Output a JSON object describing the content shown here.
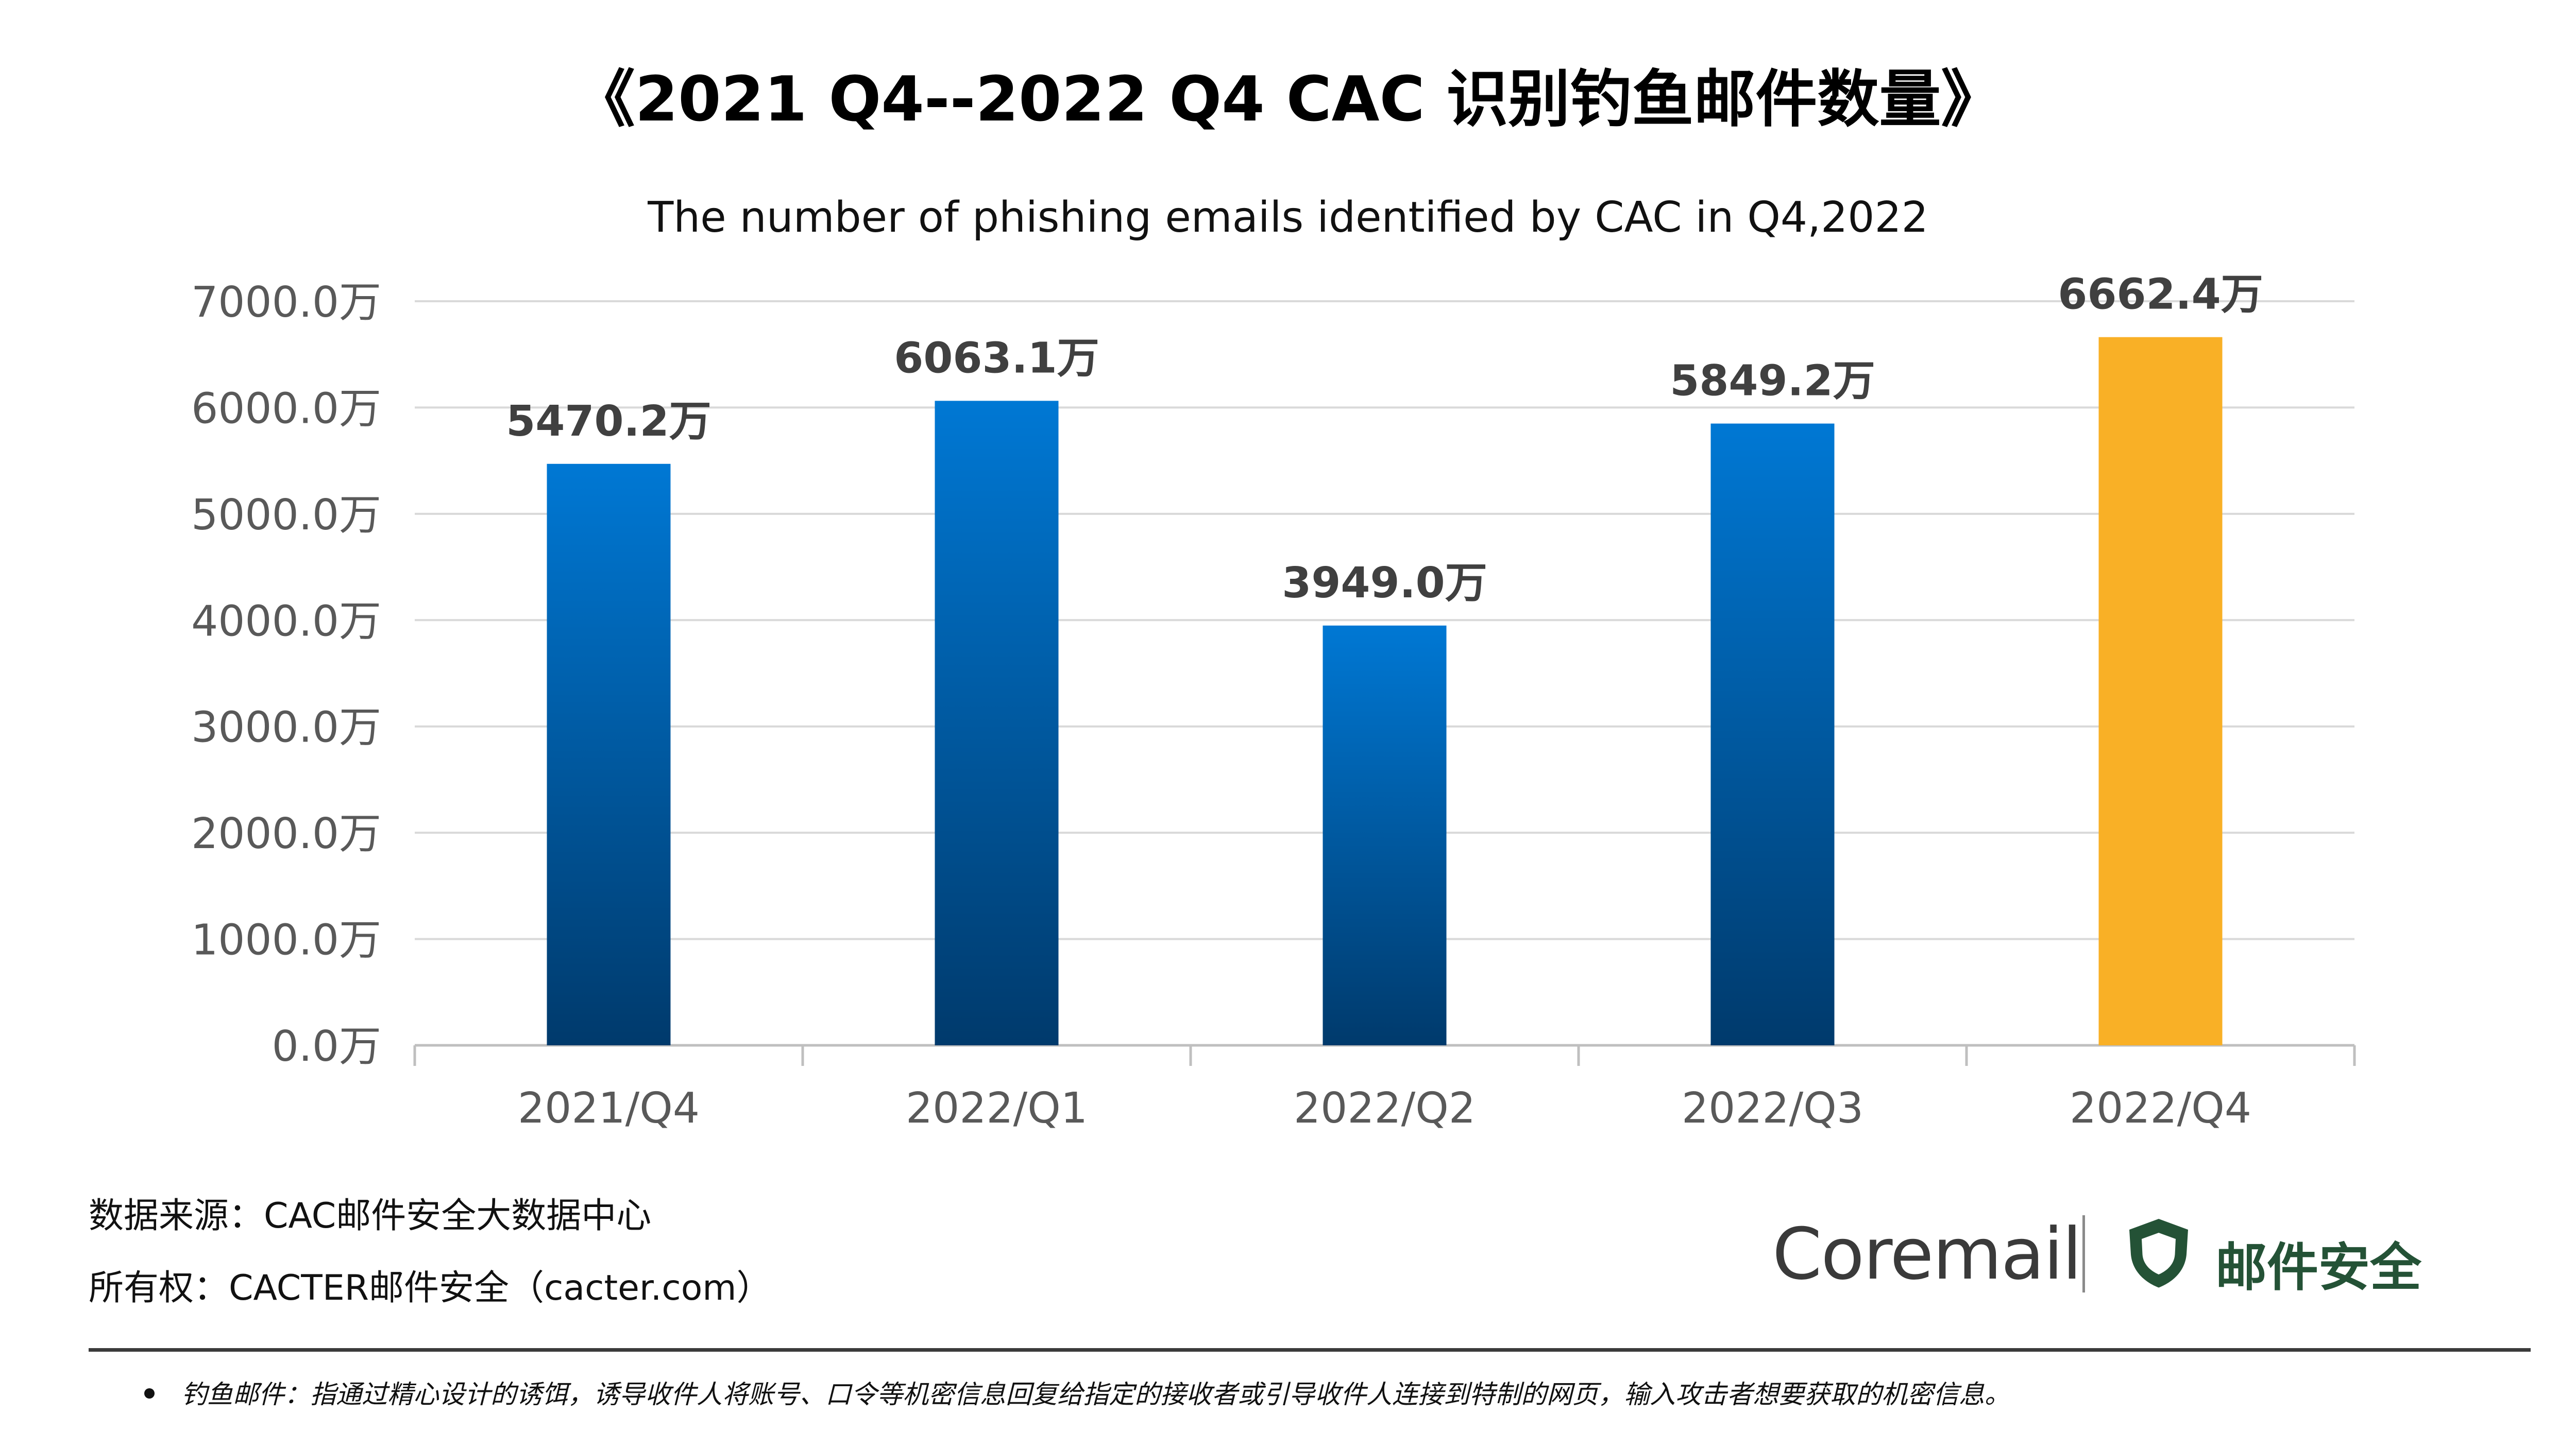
{
  "title": "《2021 Q4--2022 Q4 CAC 识别钓鱼邮件数量》",
  "subtitle": "The number of phishing emails identified by CAC in Q4,2022",
  "source_label": "数据来源：CAC邮件安全大数据中心",
  "copyright_label": "所有权：CACTER邮件安全（cacter.com）",
  "logo": {
    "brand": "Coremail",
    "product": "邮件安全",
    "icon": "shield-icon"
  },
  "footnote": "钓鱼邮件：指通过精心设计的诱饵，诱导收件人将账号、口令等机密信息回复给指定的接收者或引导收件人连接到特制的网页，输入攻击者想要获取的机密信息。",
  "colors": {
    "bar_top": "#0078D4",
    "bar_bottom": "#003A6C",
    "highlight": "#F9B026",
    "grid": "#d9d9d9",
    "axis_text": "#595959",
    "label_text": "#404040"
  },
  "chart_data": {
    "type": "bar",
    "categories": [
      "2021/Q4",
      "2022/Q1",
      "2022/Q2",
      "2022/Q3",
      "2022/Q4"
    ],
    "values": [
      5470.2,
      6063.1,
      3949.0,
      5849.2,
      6662.4
    ],
    "data_labels": [
      "5470.2万",
      "6063.1万",
      "3949.0万",
      "5849.2万",
      "6662.4万"
    ],
    "highlight_index": 4,
    "yticks": [
      "0.0万",
      "1000.0万",
      "2000.0万",
      "3000.0万",
      "4000.0万",
      "5000.0万",
      "6000.0万",
      "7000.0万"
    ],
    "ylim": [
      0,
      7000
    ],
    "ytick_step": 1000,
    "grid": true,
    "legend": false
  }
}
